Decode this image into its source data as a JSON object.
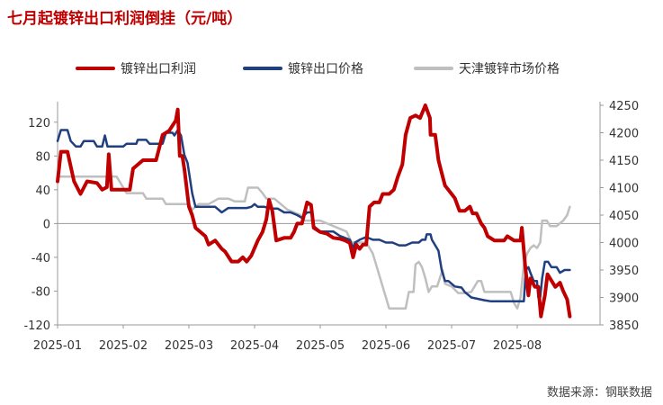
{
  "title": "七月起镀锌出口利润倒挂（元/吨）",
  "source": "数据来源：钢联数据",
  "colors": {
    "profit": "#c00000",
    "export": "#1f3f80",
    "tianjin": "#bfbfbf"
  },
  "chart_data": {
    "type": "line",
    "legend": {
      "position": "top"
    },
    "x_ticks": [
      "2025-01",
      "2025-02",
      "2025-03",
      "2025-04",
      "2025-05",
      "2025-06",
      "2025-07",
      "2025-08"
    ],
    "x_range": [
      0,
      7.8
    ],
    "y_left": {
      "ticks": [
        "120",
        "80",
        "40",
        "0",
        "-40",
        "-80",
        "-120"
      ],
      "range": [
        -120,
        140
      ]
    },
    "y_right": {
      "ticks": [
        "4250",
        "4200",
        "4150",
        "4100",
        "4050",
        "4000",
        "3950",
        "3900",
        "3850"
      ],
      "range": [
        3850,
        4250
      ]
    },
    "series": [
      {
        "name": "镀锌出口利润",
        "axis": "left",
        "color": "#c00000",
        "width": 4,
        "points": [
          [
            0,
            50
          ],
          [
            0.05,
            85
          ],
          [
            0.15,
            85
          ],
          [
            0.25,
            50
          ],
          [
            0.35,
            35
          ],
          [
            0.45,
            50
          ],
          [
            0.6,
            48
          ],
          [
            0.68,
            40
          ],
          [
            0.75,
            43
          ],
          [
            0.78,
            82
          ],
          [
            0.82,
            40
          ],
          [
            1.1,
            40
          ],
          [
            1.15,
            65
          ],
          [
            1.3,
            75
          ],
          [
            1.5,
            75
          ],
          [
            1.6,
            105
          ],
          [
            1.7,
            110
          ],
          [
            1.8,
            122
          ],
          [
            1.83,
            135
          ],
          [
            1.86,
            80
          ],
          [
            1.9,
            80
          ],
          [
            1.93,
            65
          ],
          [
            2.0,
            20
          ],
          [
            2.05,
            10
          ],
          [
            2.1,
            -5
          ],
          [
            2.25,
            -15
          ],
          [
            2.3,
            -25
          ],
          [
            2.4,
            -20
          ],
          [
            2.5,
            -30
          ],
          [
            2.55,
            -33
          ],
          [
            2.65,
            -45
          ],
          [
            2.75,
            -45
          ],
          [
            2.82,
            -40
          ],
          [
            2.88,
            -45
          ],
          [
            2.95,
            -38
          ],
          [
            3.05,
            -20
          ],
          [
            3.12,
            -10
          ],
          [
            3.18,
            5
          ],
          [
            3.22,
            28
          ],
          [
            3.27,
            15
          ],
          [
            3.33,
            -20
          ],
          [
            3.45,
            -17
          ],
          [
            3.55,
            -17
          ],
          [
            3.6,
            -10
          ],
          [
            3.65,
            0
          ],
          [
            3.72,
            0
          ],
          [
            3.8,
            25
          ],
          [
            3.86,
            22
          ],
          [
            3.9,
            -5
          ],
          [
            4.0,
            -10
          ],
          [
            4.1,
            -12
          ],
          [
            4.2,
            -17
          ],
          [
            4.3,
            -18
          ],
          [
            4.38,
            -20
          ],
          [
            4.45,
            -23
          ],
          [
            4.5,
            -40
          ],
          [
            4.55,
            -25
          ],
          [
            4.6,
            -30
          ],
          [
            4.65,
            -25
          ],
          [
            4.7,
            -25
          ],
          [
            4.75,
            20
          ],
          [
            4.82,
            25
          ],
          [
            4.9,
            25
          ],
          [
            4.95,
            35
          ],
          [
            5.05,
            35
          ],
          [
            5.12,
            40
          ],
          [
            5.18,
            55
          ],
          [
            5.25,
            70
          ],
          [
            5.3,
            105
          ],
          [
            5.37,
            125
          ],
          [
            5.45,
            128
          ],
          [
            5.52,
            125
          ],
          [
            5.6,
            140
          ],
          [
            5.67,
            125
          ],
          [
            5.68,
            105
          ],
          [
            5.75,
            105
          ],
          [
            5.8,
            75
          ],
          [
            5.85,
            60
          ],
          [
            5.9,
            45
          ],
          [
            6.0,
            35
          ],
          [
            6.05,
            30
          ],
          [
            6.12,
            15
          ],
          [
            6.2,
            15
          ],
          [
            6.28,
            20
          ],
          [
            6.32,
            12
          ],
          [
            6.38,
            12
          ],
          [
            6.45,
            0
          ],
          [
            6.5,
            -5
          ],
          [
            6.55,
            -15
          ],
          [
            6.65,
            -20
          ],
          [
            6.8,
            -20
          ],
          [
            6.85,
            -15
          ],
          [
            6.95,
            -20
          ],
          [
            7.05,
            -20
          ],
          [
            7.07,
            -5
          ],
          [
            7.12,
            -50
          ],
          [
            7.17,
            -85
          ],
          [
            7.2,
            -65
          ],
          [
            7.27,
            -75
          ],
          [
            7.32,
            -75
          ],
          [
            7.36,
            -110
          ],
          [
            7.42,
            -85
          ],
          [
            7.46,
            -60
          ],
          [
            7.5,
            -65
          ],
          [
            7.58,
            -75
          ],
          [
            7.65,
            -70
          ],
          [
            7.7,
            -80
          ],
          [
            7.76,
            -90
          ],
          [
            7.8,
            -110
          ]
        ]
      },
      {
        "name": "镀锌出口价格",
        "axis": "right",
        "color": "#1f3f80",
        "width": 2.5,
        "points": [
          [
            0,
            4185
          ],
          [
            0.05,
            4205
          ],
          [
            0.15,
            4205
          ],
          [
            0.2,
            4185
          ],
          [
            0.28,
            4175
          ],
          [
            0.35,
            4175
          ],
          [
            0.4,
            4185
          ],
          [
            0.55,
            4185
          ],
          [
            0.6,
            4175
          ],
          [
            0.68,
            4175
          ],
          [
            0.72,
            4195
          ],
          [
            0.76,
            4175
          ],
          [
            1.0,
            4175
          ],
          [
            1.05,
            4180
          ],
          [
            1.2,
            4180
          ],
          [
            1.22,
            4187
          ],
          [
            1.35,
            4187
          ],
          [
            1.4,
            4180
          ],
          [
            1.6,
            4180
          ],
          [
            1.65,
            4200
          ],
          [
            1.75,
            4200
          ],
          [
            1.78,
            4195
          ],
          [
            1.83,
            4205
          ],
          [
            1.88,
            4195
          ],
          [
            1.93,
            4160
          ],
          [
            1.98,
            4145
          ],
          [
            2.05,
            4090
          ],
          [
            2.1,
            4065
          ],
          [
            2.25,
            4065
          ],
          [
            2.4,
            4065
          ],
          [
            2.5,
            4055
          ],
          [
            2.6,
            4063
          ],
          [
            2.72,
            4063
          ],
          [
            2.88,
            4063
          ],
          [
            2.95,
            4065
          ],
          [
            3.0,
            4070
          ],
          [
            3.05,
            4065
          ],
          [
            3.15,
            4065
          ],
          [
            3.25,
            4062
          ],
          [
            3.35,
            4062
          ],
          [
            3.45,
            4055
          ],
          [
            3.55,
            4055
          ],
          [
            3.65,
            4050
          ],
          [
            3.72,
            4045
          ],
          [
            3.8,
            4055
          ],
          [
            3.87,
            4055
          ],
          [
            3.9,
            4030
          ],
          [
            4.0,
            4020
          ],
          [
            4.2,
            4020
          ],
          [
            4.3,
            4012
          ],
          [
            4.45,
            4005
          ],
          [
            4.5,
            3990
          ],
          [
            4.53,
            4000
          ],
          [
            4.6,
            4005
          ],
          [
            4.7,
            4010
          ],
          [
            4.8,
            4005
          ],
          [
            4.9,
            4005
          ],
          [
            5.0,
            4000
          ],
          [
            5.1,
            4000
          ],
          [
            5.2,
            3995
          ],
          [
            5.3,
            3995
          ],
          [
            5.4,
            4000
          ],
          [
            5.5,
            4000
          ],
          [
            5.55,
            4005
          ],
          [
            5.6,
            4005
          ],
          [
            5.62,
            4015
          ],
          [
            5.68,
            4015
          ],
          [
            5.7,
            4005
          ],
          [
            5.8,
            3985
          ],
          [
            5.85,
            3950
          ],
          [
            5.9,
            3930
          ],
          [
            5.95,
            3930
          ],
          [
            6.05,
            3920
          ],
          [
            6.15,
            3918
          ],
          [
            6.2,
            3910
          ],
          [
            6.3,
            3900
          ],
          [
            6.5,
            3895
          ],
          [
            6.6,
            3893
          ],
          [
            6.8,
            3893
          ],
          [
            7.0,
            3893
          ],
          [
            7.1,
            3893
          ],
          [
            7.13,
            3950
          ],
          [
            7.17,
            3955
          ],
          [
            7.2,
            3945
          ],
          [
            7.25,
            3930
          ],
          [
            7.3,
            3930
          ],
          [
            7.32,
            3900
          ],
          [
            7.35,
            3900
          ],
          [
            7.38,
            3935
          ],
          [
            7.42,
            3965
          ],
          [
            7.47,
            3965
          ],
          [
            7.52,
            3955
          ],
          [
            7.6,
            3955
          ],
          [
            7.65,
            3945
          ],
          [
            7.72,
            3950
          ],
          [
            7.8,
            3950
          ]
        ]
      },
      {
        "name": "天津镀锌市场价格",
        "axis": "right",
        "color": "#bfbfbf",
        "width": 2.5,
        "points": [
          [
            0,
            4120
          ],
          [
            0.05,
            4120
          ],
          [
            0.9,
            4120
          ],
          [
            1.05,
            4090
          ],
          [
            1.3,
            4090
          ],
          [
            1.35,
            4080
          ],
          [
            1.6,
            4080
          ],
          [
            1.65,
            4070
          ],
          [
            2.0,
            4070
          ],
          [
            2.05,
            4060
          ],
          [
            2.15,
            4070
          ],
          [
            2.3,
            4070
          ],
          [
            2.45,
            4080
          ],
          [
            2.6,
            4080
          ],
          [
            2.7,
            4075
          ],
          [
            2.85,
            4075
          ],
          [
            2.9,
            4100
          ],
          [
            3.05,
            4100
          ],
          [
            3.12,
            4090
          ],
          [
            3.18,
            4080
          ],
          [
            3.3,
            4080
          ],
          [
            3.4,
            4070
          ],
          [
            3.5,
            4060
          ],
          [
            3.6,
            4055
          ],
          [
            3.7,
            4050
          ],
          [
            3.75,
            4040
          ],
          [
            4.0,
            4040
          ],
          [
            4.2,
            4030
          ],
          [
            4.4,
            4020
          ],
          [
            4.48,
            4000
          ],
          [
            4.7,
            4000
          ],
          [
            4.8,
            3980
          ],
          [
            4.9,
            3940
          ],
          [
            5.0,
            3900
          ],
          [
            5.05,
            3880
          ],
          [
            5.3,
            3880
          ],
          [
            5.35,
            3910
          ],
          [
            5.42,
            3910
          ],
          [
            5.45,
            3960
          ],
          [
            5.5,
            3965
          ],
          [
            5.55,
            3955
          ],
          [
            5.6,
            3935
          ],
          [
            5.65,
            3910
          ],
          [
            5.7,
            3920
          ],
          [
            5.78,
            3920
          ],
          [
            5.82,
            3935
          ],
          [
            5.86,
            3950
          ],
          [
            5.9,
            3925
          ],
          [
            6.0,
            3920
          ],
          [
            6.1,
            3908
          ],
          [
            6.2,
            3908
          ],
          [
            6.3,
            3910
          ],
          [
            6.4,
            3930
          ],
          [
            6.45,
            3930
          ],
          [
            6.5,
            3910
          ],
          [
            6.55,
            3910
          ],
          [
            6.9,
            3910
          ],
          [
            6.95,
            3890
          ],
          [
            7.0,
            3880
          ],
          [
            7.05,
            3900
          ],
          [
            7.1,
            3960
          ],
          [
            7.15,
            3980
          ],
          [
            7.2,
            3990
          ],
          [
            7.25,
            3995
          ],
          [
            7.3,
            3990
          ],
          [
            7.35,
            4000
          ],
          [
            7.38,
            4040
          ],
          [
            7.45,
            4040
          ],
          [
            7.5,
            4030
          ],
          [
            7.6,
            4030
          ],
          [
            7.7,
            4040
          ],
          [
            7.76,
            4050
          ],
          [
            7.8,
            4065
          ]
        ]
      }
    ]
  }
}
